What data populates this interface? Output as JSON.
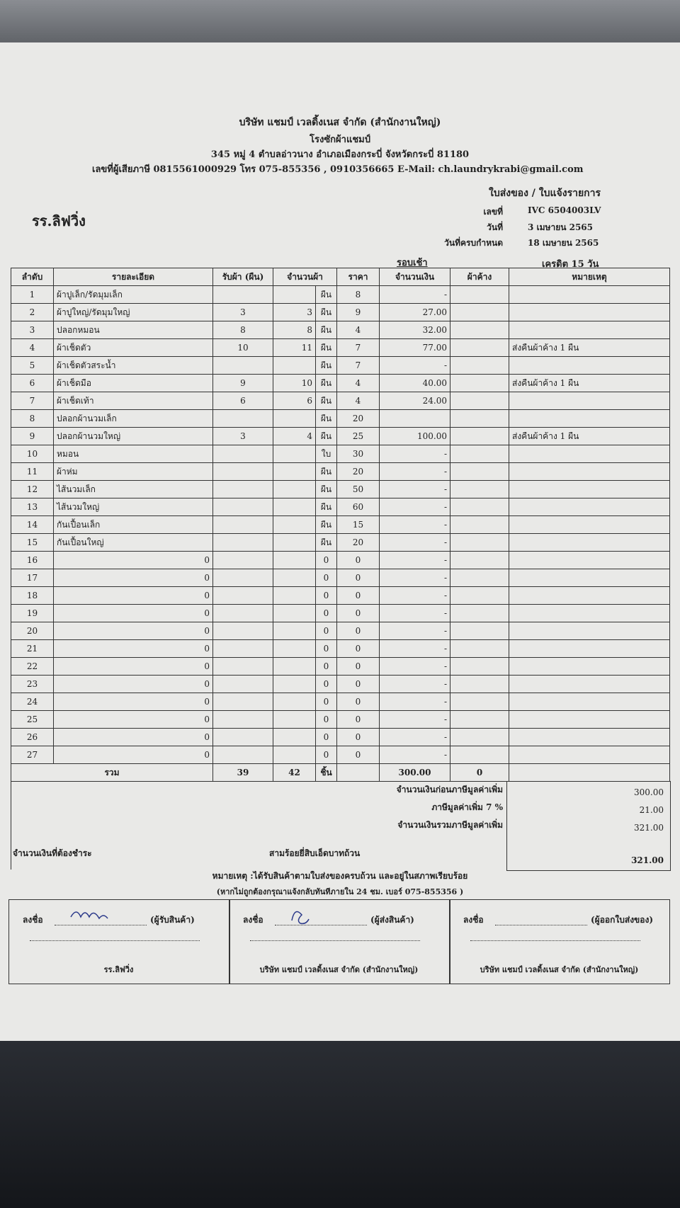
{
  "header": {
    "company": "บริษัท แชมป์ เวลดิ้งเนส จำกัด (สำนักงานใหญ่)",
    "shop": "โรงซักผ้าแชมป์",
    "address": "345 หมู่ 4 ตำบลอ่าวนาง อำเภอเมืองกระบี่ จังหวัดกระบี่ 81180",
    "contact": "เลขที่ผู้เสียภาษี 0815561000929 โทร 075-855356 , 0910356665 E-Mail: ch.laundrykrabi@gmail.com",
    "doc_title": "ใบส่งของ / ใบแจ้งรายการ",
    "customer": "รร.ลิฟวิ่ง",
    "meta": [
      {
        "label": "เลขที่",
        "value": "IVC 6504003LV"
      },
      {
        "label": "วันที่",
        "value": "3 เมษายน 2565"
      },
      {
        "label": "วันที่ครบกำหนด",
        "value": "18 เมษายน 2565"
      }
    ],
    "round": "รอบเช้า",
    "credit": "เครดิต 15 วัน"
  },
  "table": {
    "headers": [
      "ลำดับ",
      "รายละเอียด",
      "รับผ้า (ผืน)",
      "จำนวนผ้า",
      "ราคา",
      "จำนวนเงิน",
      "ผ้าค้าง",
      "หมายเหตุ"
    ],
    "rows": [
      {
        "no": "1",
        "detail": "ผ้าปูเล็ก/รัดมุมเล็ก",
        "unit": "ผืน",
        "price": "8",
        "amount": "-"
      },
      {
        "no": "2",
        "detail": "ผ้าปูใหญ่/รัดมุมใหญ่",
        "received": "3",
        "qty": "3",
        "unit": "ผืน",
        "price": "9",
        "amount": "27.00"
      },
      {
        "no": "3",
        "detail": "ปลอกหมอน",
        "received": "8",
        "qty": "8",
        "unit": "ผืน",
        "price": "4",
        "amount": "32.00"
      },
      {
        "no": "4",
        "detail": "ผ้าเช็ดตัว",
        "received": "10",
        "qty": "11",
        "unit": "ผืน",
        "price": "7",
        "amount": "77.00",
        "note": "ส่งคืนผ้าค้าง 1 ผืน"
      },
      {
        "no": "5",
        "detail": "ผ้าเช็ดตัวสระน้ำ",
        "unit": "ผืน",
        "price": "7",
        "amount": "-"
      },
      {
        "no": "6",
        "detail": "ผ้าเช็ดมือ",
        "received": "9",
        "qty": "10",
        "unit": "ผืน",
        "price": "4",
        "amount": "40.00",
        "note": "ส่งคืนผ้าค้าง 1 ผืน"
      },
      {
        "no": "7",
        "detail": "ผ้าเช็ดเท้า",
        "received": "6",
        "qty": "6",
        "unit": "ผืน",
        "price": "4",
        "amount": "24.00"
      },
      {
        "no": "8",
        "detail": "ปลอกผ้านวมเล็ก",
        "unit": "ผืน",
        "price": "20"
      },
      {
        "no": "9",
        "detail": "ปลอกผ้านวมใหญ่",
        "received": "3",
        "qty": "4",
        "unit": "ผืน",
        "price": "25",
        "amount": "100.00",
        "note": "ส่งคืนผ้าค้าง 1 ผืน"
      },
      {
        "no": "10",
        "detail": "หมอน",
        "unit": "ใบ",
        "price": "30",
        "amount": "-"
      },
      {
        "no": "11",
        "detail": "ผ้าห่ม",
        "unit": "ผืน",
        "price": "20",
        "amount": "-"
      },
      {
        "no": "12",
        "detail": "ไส้นวมเล็ก",
        "unit": "ผืน",
        "price": "50",
        "amount": "-"
      },
      {
        "no": "13",
        "detail": "ไส้นวมใหญ่",
        "unit": "ผืน",
        "price": "60",
        "amount": "-"
      },
      {
        "no": "14",
        "detail": "กันเปื้อนเล็ก",
        "unit": "ผืน",
        "price": "15",
        "amount": "-"
      },
      {
        "no": "15",
        "detail": "กันเปื้อนใหญ่",
        "unit": "ผืน",
        "price": "20",
        "amount": "-"
      },
      {
        "no": "16",
        "detail": "0",
        "unit": "0",
        "price": "0",
        "amount": "-"
      },
      {
        "no": "17",
        "detail": "0",
        "unit": "0",
        "price": "0",
        "amount": "-"
      },
      {
        "no": "18",
        "detail": "0",
        "unit": "0",
        "price": "0",
        "amount": "-"
      },
      {
        "no": "19",
        "detail": "0",
        "unit": "0",
        "price": "0",
        "amount": "-"
      },
      {
        "no": "20",
        "detail": "0",
        "unit": "0",
        "price": "0",
        "amount": "-"
      },
      {
        "no": "21",
        "detail": "0",
        "unit": "0",
        "price": "0",
        "amount": "-"
      },
      {
        "no": "22",
        "detail": "0",
        "unit": "0",
        "price": "0",
        "amount": "-"
      },
      {
        "no": "23",
        "detail": "0",
        "unit": "0",
        "price": "0",
        "amount": "-"
      },
      {
        "no": "24",
        "detail": "0",
        "unit": "0",
        "price": "0",
        "amount": "-"
      },
      {
        "no": "25",
        "detail": "0",
        "unit": "0",
        "price": "0",
        "amount": "-"
      },
      {
        "no": "26",
        "detail": "0",
        "unit": "0",
        "price": "0",
        "amount": "-"
      },
      {
        "no": "27",
        "detail": "0",
        "unit": "0",
        "price": "0",
        "amount": "-"
      }
    ],
    "total": {
      "label": "รวม",
      "received": "39",
      "qty": "42",
      "unit": "ชิ้น",
      "amount": "300.00",
      "pending": "0"
    }
  },
  "summary": [
    {
      "label": "จำนวนเงินก่อนภาษีมูลค่าเพิ่ม",
      "value": "300.00"
    },
    {
      "label": "ภาษีมูลค่าเพิ่ม 7 %",
      "value": "21.00"
    },
    {
      "label": "จำนวนเงินรวมภาษีมูลค่าเพิ่ม",
      "value": "321.00"
    }
  ],
  "payable": {
    "label": "จำนวนเงินที่ต้องชำระ",
    "words": "สามร้อยยี่สิบเอ็ดบาทถ้วน",
    "value": "321.00"
  },
  "remarks": [
    "หมายเหตุ :ได้รับสินค้าตามใบส่งของครบถ้วน และอยู่ในสภาพเรียบร้อย",
    "(หากไม่ถูกต้องกรุณาแจ้งกลับทันทีภายใน 24 ชม. เบอร์ 075-855356 )"
  ],
  "signatures": [
    {
      "sign": "ลงชื่อ",
      "role": "(ผู้รับสินค้า)",
      "org": "รร.ลิฟวิ่ง"
    },
    {
      "sign": "ลงชื่อ",
      "role": "(ผู้ส่งสินค้า)",
      "org": "บริษัท แชมป์ เวลดิ้งเนส จำกัด (สำนักงานใหญ่)"
    },
    {
      "sign": "ลงชื่อ",
      "role": "(ผู้ออกใบส่งของ)",
      "org": "บริษัท แชมป์ เวลดิ้งเนส จำกัด (สำนักงานใหญ่)"
    }
  ]
}
